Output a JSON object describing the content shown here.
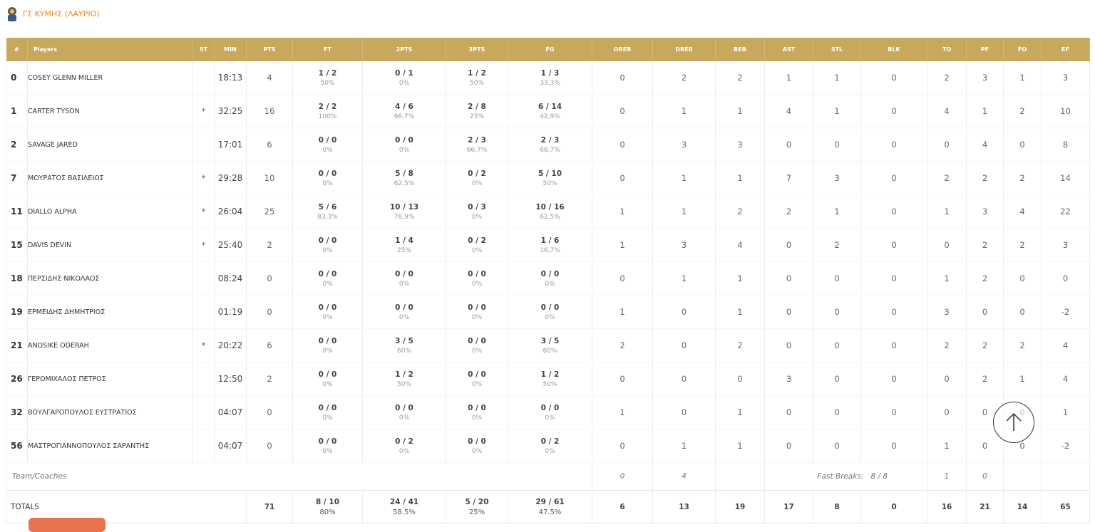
{
  "header": {
    "title": "ΓΣ ΚΥΜΗΣ (ΛΑΥΡΙΟ)"
  },
  "table": {
    "columns": [
      "#",
      "Players",
      "ST",
      "MIN",
      "PTS",
      "FT",
      "2PTS",
      "3PTS",
      "FG",
      "OREB",
      "DREB",
      "REB",
      "AST",
      "STL",
      "BLK",
      "TO",
      "PF",
      "FO",
      "EF"
    ],
    "rows": [
      [
        0,
        "COSEY GLENN MILLER",
        null,
        "18:13",
        4,
        {
          "made": "1 / 2",
          "pct": "50%"
        },
        {
          "made": "0 / 1",
          "pct": "0%"
        },
        {
          "made": "1 / 2",
          "pct": "50%"
        },
        {
          "made": "1 / 3",
          "pct": "33,3%"
        },
        0,
        2,
        2,
        1,
        1,
        0,
        2,
        3,
        1,
        3
      ],
      [
        1,
        "CARTER TYSON",
        "*",
        "32:25",
        16,
        {
          "made": "2 / 2",
          "pct": "100%"
        },
        {
          "made": "4 / 6",
          "pct": "66,7%"
        },
        {
          "made": "2 / 8",
          "pct": "25%"
        },
        {
          "made": "6 / 14",
          "pct": "42,9%"
        },
        0,
        1,
        1,
        4,
        1,
        0,
        4,
        1,
        2,
        10
      ],
      [
        2,
        "SAVAGE JARED",
        null,
        "17:01",
        6,
        {
          "made": "0 / 0",
          "pct": "0%"
        },
        {
          "made": "0 / 0",
          "pct": "0%"
        },
        {
          "made": "2 / 3",
          "pct": "66,7%"
        },
        {
          "made": "2 / 3",
          "pct": "66,7%"
        },
        0,
        3,
        3,
        0,
        0,
        0,
        0,
        4,
        0,
        8
      ],
      [
        7,
        "ΜΟΥΡΑΤΟΣ ΒΑΣΙΛΕΙΟΣ",
        "*",
        "29:28",
        10,
        {
          "made": "0 / 0",
          "pct": "0%"
        },
        {
          "made": "5 / 8",
          "pct": "62,5%"
        },
        {
          "made": "0 / 2",
          "pct": "0%"
        },
        {
          "made": "5 / 10",
          "pct": "50%"
        },
        0,
        1,
        1,
        7,
        3,
        0,
        2,
        2,
        2,
        14
      ],
      [
        11,
        "DIALLO ALPHA",
        "*",
        "26:04",
        25,
        {
          "made": "5 / 6",
          "pct": "83,3%"
        },
        {
          "made": "10 / 13",
          "pct": "76,9%"
        },
        {
          "made": "0 / 3",
          "pct": "0%"
        },
        {
          "made": "10 / 16",
          "pct": "62,5%"
        },
        1,
        1,
        2,
        2,
        1,
        0,
        1,
        3,
        4,
        22
      ],
      [
        15,
        "DAVIS DEVIN",
        "*",
        "25:40",
        2,
        {
          "made": "0 / 0",
          "pct": "0%"
        },
        {
          "made": "1 / 4",
          "pct": "25%"
        },
        {
          "made": "0 / 2",
          "pct": "0%"
        },
        {
          "made": "1 / 6",
          "pct": "16,7%"
        },
        1,
        3,
        4,
        0,
        2,
        0,
        0,
        2,
        2,
        3
      ],
      [
        18,
        "ΠΕΡΣΙΔΗΣ ΝΙΚΟΛΑΟΣ",
        null,
        "08:24",
        0,
        {
          "made": "0 / 0",
          "pct": "0%"
        },
        {
          "made": "0 / 0",
          "pct": "0%"
        },
        {
          "made": "0 / 0",
          "pct": "0%"
        },
        {
          "made": "0 / 0",
          "pct": "0%"
        },
        0,
        1,
        1,
        0,
        0,
        0,
        1,
        2,
        0,
        0
      ],
      [
        19,
        "ΕΡΜΕΙΔΗΣ ΔΗΜΗΤΡΙΟΣ",
        null,
        "01:19",
        0,
        {
          "made": "0 / 0",
          "pct": "0%"
        },
        {
          "made": "0 / 0",
          "pct": "0%"
        },
        {
          "made": "0 / 0",
          "pct": "0%"
        },
        {
          "made": "0 / 0",
          "pct": "0%"
        },
        1,
        0,
        1,
        0,
        0,
        0,
        3,
        0,
        0,
        -2
      ],
      [
        21,
        "ANOSIKE ODERAH",
        "*",
        "20:22",
        6,
        {
          "made": "0 / 0",
          "pct": "0%"
        },
        {
          "made": "3 / 5",
          "pct": "60%"
        },
        {
          "made": "0 / 0",
          "pct": "0%"
        },
        {
          "made": "3 / 5",
          "pct": "60%"
        },
        2,
        0,
        2,
        0,
        0,
        0,
        2,
        2,
        2,
        4
      ],
      [
        26,
        "ΓΕΡΟΜΙΧΑΛΟΣ ΠΕΤΡΟΣ",
        null,
        "12:50",
        2,
        {
          "made": "0 / 0",
          "pct": "0%"
        },
        {
          "made": "1 / 2",
          "pct": "50%"
        },
        {
          "made": "0 / 0",
          "pct": "0%"
        },
        {
          "made": "1 / 2",
          "pct": "50%"
        },
        0,
        0,
        0,
        3,
        0,
        0,
        0,
        2,
        1,
        4
      ],
      [
        32,
        "ΒΟΥΛΓΑΡΟΠΟΥΛΟΣ ΕΥΣΤΡΑΤΙΟΣ",
        null,
        "04:07",
        0,
        {
          "made": "0 / 0",
          "pct": "0%"
        },
        {
          "made": "0 / 0",
          "pct": "0%"
        },
        {
          "made": "0 / 0",
          "pct": "0%"
        },
        {
          "made": "0 / 0",
          "pct": "0%"
        },
        1,
        0,
        1,
        0,
        0,
        0,
        0,
        0,
        0,
        1
      ],
      [
        56,
        "ΜΑΣΤΡΟΓΙΑΝΝΟΠΟΥΛΟΣ ΣΑΡΑΝΤΗΣ",
        null,
        "04:07",
        0,
        {
          "made": "0 / 0",
          "pct": "0%"
        },
        {
          "made": "0 / 2",
          "pct": "0%"
        },
        {
          "made": "0 / 0",
          "pct": "0%"
        },
        {
          "made": "0 / 2",
          "pct": "0%"
        },
        0,
        1,
        1,
        0,
        0,
        0,
        1,
        0,
        0,
        -2
      ]
    ],
    "team_row": {
      "label": "Team/Coaches",
      "oreb": 0,
      "dreb": 4,
      "fast_breaks_label": "Fast Breaks:",
      "fast_breaks": "8 / 8",
      "to": 1,
      "pf": 0
    },
    "totals": {
      "label": "TOTALS",
      "values": [
        71,
        {
          "made": "8 / 10",
          "pct": "80%"
        },
        {
          "made": "24 / 41",
          "pct": "58.5%"
        },
        {
          "made": "5 / 20",
          "pct": "25%"
        },
        {
          "made": "29 / 61",
          "pct": "47.5%"
        },
        6,
        13,
        19,
        17,
        8,
        0,
        16,
        21,
        14,
        65
      ]
    }
  }
}
